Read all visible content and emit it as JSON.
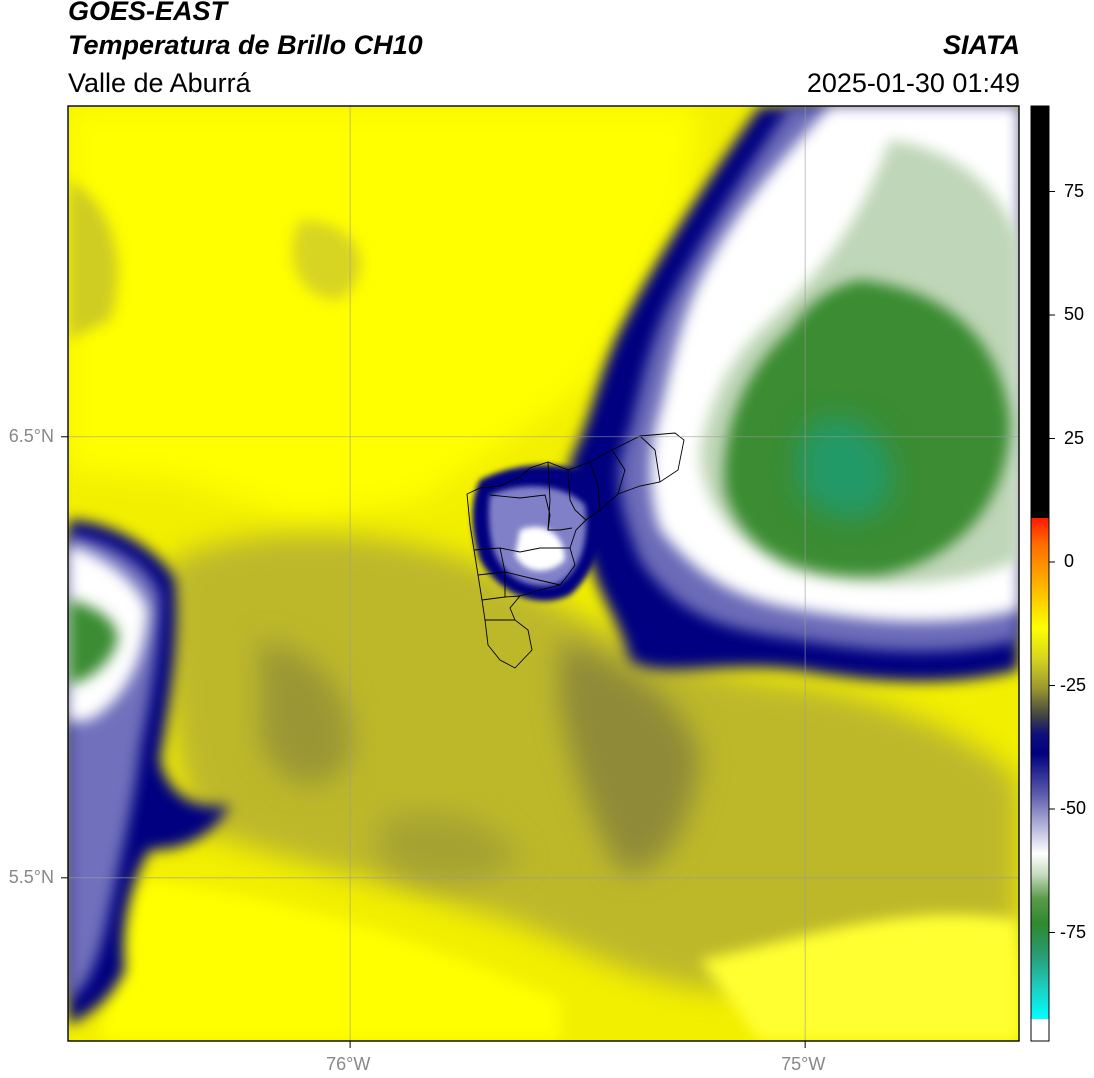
{
  "header": {
    "satellite": "GOES-EAST",
    "product": "Temperatura de Brillo CH10",
    "region": "Valle de Aburrá",
    "agency": "SIATA",
    "timestamp": "2025-01-30 01:49"
  },
  "map": {
    "type": "heatmap",
    "lon_range": [
      -76.62,
      -74.53
    ],
    "lat_range": [
      5.13,
      7.25
    ],
    "lon_ticks": [
      {
        "value": -76,
        "label": "76°W"
      },
      {
        "value": -75,
        "label": "75°W"
      }
    ],
    "lat_ticks": [
      {
        "value": 6.5,
        "label": "6.5°N"
      },
      {
        "value": 5.5,
        "label": "5.5°N"
      }
    ],
    "gridlines": true,
    "colorbar": {
      "orientation": "vertical",
      "ticks": [
        75,
        50,
        25,
        0,
        -25,
        -50,
        -75
      ],
      "tick_labels": [
        "75",
        "50",
        "25",
        "0",
        "-25",
        "-50",
        "-75"
      ]
    },
    "features": [
      "Valle de Aburrá municipal boundaries"
    ]
  }
}
